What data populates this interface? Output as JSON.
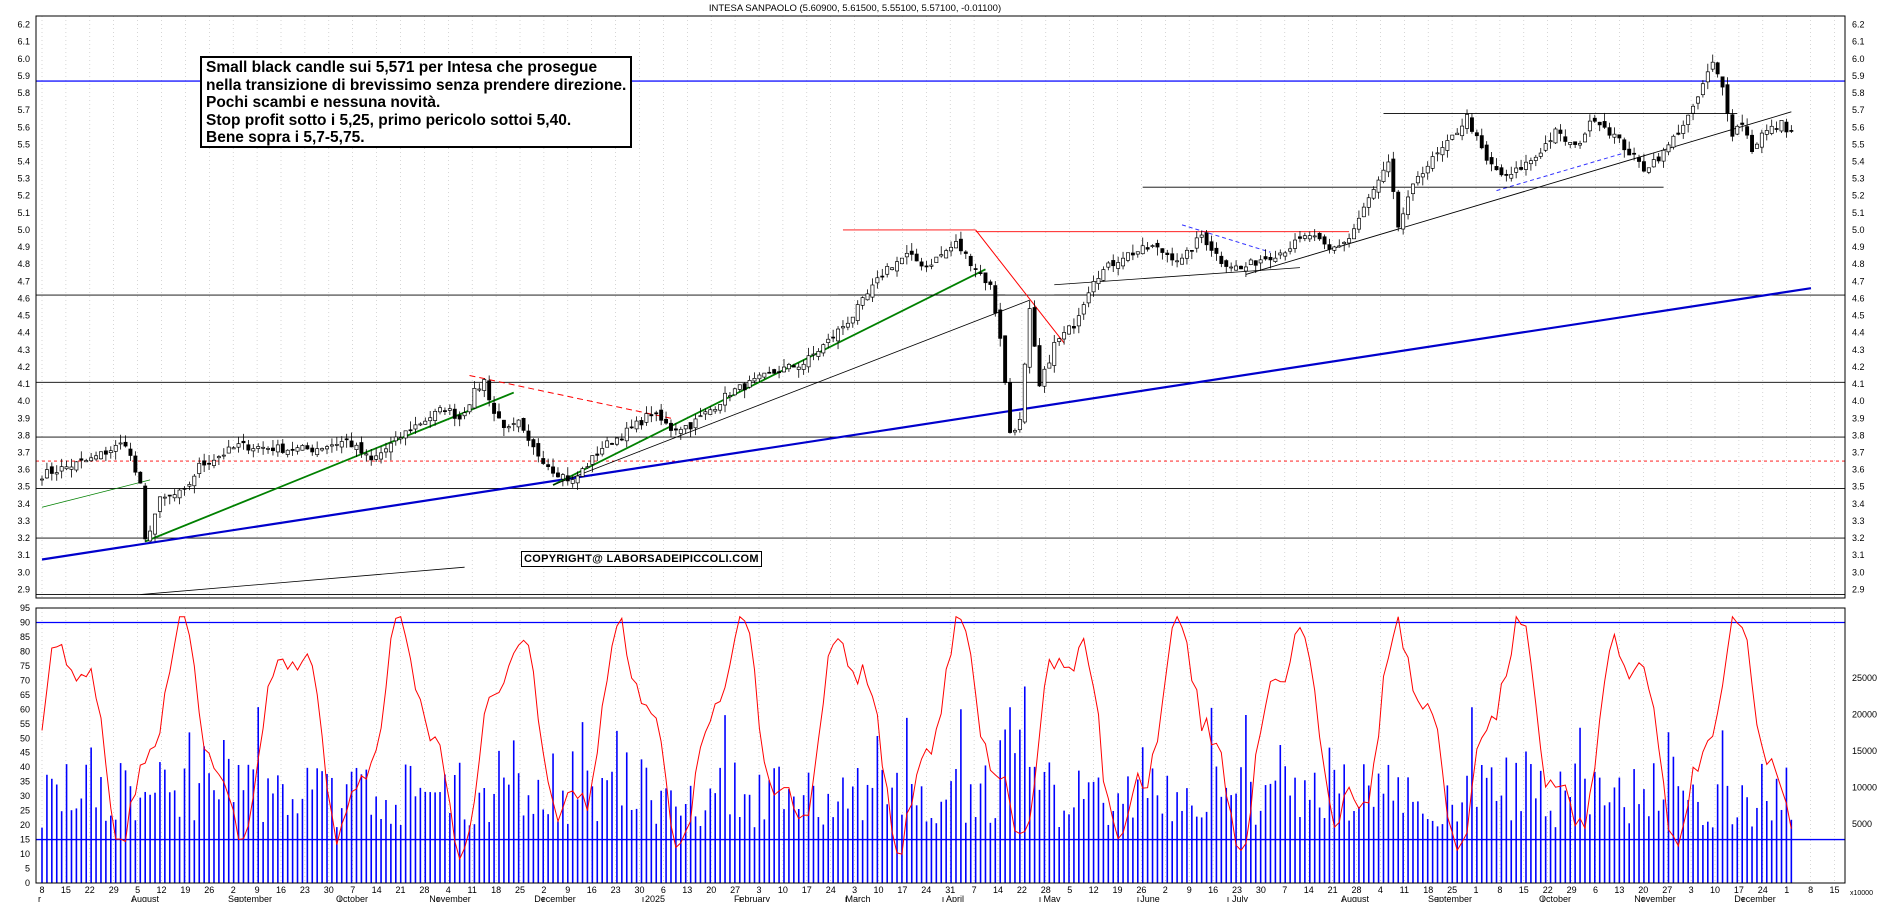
{
  "header": {
    "title": "INTESA SANPAOLO (5.60900, 5.61500, 5.55100, 5.57100, -0.01100)"
  },
  "annotation": {
    "lines": [
      "Small black candle sui 5,571 per Intesa che prosegue",
      "nella transizione di brevissimo senza prendere direzione.",
      "Pochi scambi e nessuna novità.",
      "Stop profit sotto i 5,25, primo pericolo sottoi 5,40.",
      "Bene sopra i 5,7-5,75."
    ]
  },
  "copyright": "COPYRIGHT@ LABORSADEIPICCOLI.COM",
  "chart_data": {
    "type": "candlestick",
    "title": "INTESA SANPAOLO (5.60900, 5.61500, 5.55100, 5.57100, -0.01100)",
    "last_bar": {
      "open": 5.609,
      "high": 5.615,
      "low": 5.551,
      "close": 5.571,
      "change": -0.011
    },
    "price_axis": {
      "ylim": [
        2.85,
        6.25
      ],
      "ticks": [
        "2.9",
        "3.0",
        "3.1",
        "3.2",
        "3.3",
        "3.4",
        "3.5",
        "3.6",
        "3.7",
        "3.8",
        "3.9",
        "4.0",
        "4.1",
        "4.2",
        "4.3",
        "4.4",
        "4.5",
        "4.6",
        "4.7",
        "4.8",
        "4.9",
        "5.0",
        "5.1",
        "5.2",
        "5.3",
        "5.4",
        "5.5",
        "5.6",
        "5.7",
        "5.8",
        "5.9",
        "6.0",
        "6.1",
        "6.2"
      ]
    },
    "oscillator_axis": {
      "ylim": [
        0,
        95
      ],
      "ticks": [
        "0",
        "5",
        "10",
        "15",
        "20",
        "25",
        "30",
        "35",
        "40",
        "45",
        "50",
        "55",
        "60",
        "65",
        "70",
        "75",
        "80",
        "85",
        "90",
        "95"
      ],
      "reference_levels": [
        15,
        90
      ]
    },
    "volume_axis": {
      "ticks": [
        "5000",
        "10000",
        "15000",
        "20000",
        "25000"
      ],
      "unit_label": "x10000"
    },
    "x_axis": {
      "day_labels": [
        "8",
        "15",
        "22",
        "29",
        "5",
        "12",
        "19",
        "26",
        "2",
        "9",
        "16",
        "23",
        "30",
        "7",
        "14",
        "21",
        "28",
        "4",
        "11",
        "18",
        "25",
        "2",
        "9",
        "16",
        "23",
        "30",
        "6",
        "13",
        "20",
        "27",
        "3",
        "10",
        "17",
        "24",
        "3",
        "10",
        "17",
        "24",
        "31",
        "7",
        "14",
        "22",
        "28",
        "5",
        "12",
        "19",
        "26",
        "2",
        "9",
        "16",
        "23",
        "30",
        "7",
        "14",
        "21",
        "28",
        "4",
        "11",
        "18",
        "25",
        "1",
        "8",
        "15",
        "22",
        "29",
        "6",
        "13",
        "20",
        "27",
        "3",
        "10",
        "17",
        "24",
        "1",
        "8",
        "15"
      ],
      "month_labels": [
        "August",
        "September",
        "October",
        "November",
        "December",
        "2025",
        "February",
        "March",
        "April",
        "May",
        "June",
        "July",
        "August",
        "September",
        "October",
        "November",
        "December"
      ],
      "first_label": "r"
    },
    "anchors": [
      {
        "bar": 0,
        "price": 3.57
      },
      {
        "bar": 10,
        "price": 3.66
      },
      {
        "bar": 17,
        "price": 3.76
      },
      {
        "bar": 20,
        "price": 3.5
      },
      {
        "bar": 21,
        "price": 3.18
      },
      {
        "bar": 24,
        "price": 3.42
      },
      {
        "bar": 29,
        "price": 3.47
      },
      {
        "bar": 32,
        "price": 3.62
      },
      {
        "bar": 40,
        "price": 3.74
      },
      {
        "bar": 50,
        "price": 3.72
      },
      {
        "bar": 55,
        "price": 3.72
      },
      {
        "bar": 62,
        "price": 3.77
      },
      {
        "bar": 67,
        "price": 3.65
      },
      {
        "bar": 75,
        "price": 3.84
      },
      {
        "bar": 82,
        "price": 3.96
      },
      {
        "bar": 85,
        "price": 3.9
      },
      {
        "bar": 88,
        "price": 4.05
      },
      {
        "bar": 90,
        "price": 4.12
      },
      {
        "bar": 92,
        "price": 3.93
      },
      {
        "bar": 95,
        "price": 3.83
      },
      {
        "bar": 97,
        "price": 3.87
      },
      {
        "bar": 99,
        "price": 3.75
      },
      {
        "bar": 104,
        "price": 3.6
      },
      {
        "bar": 108,
        "price": 3.53
      },
      {
        "bar": 114,
        "price": 3.73
      },
      {
        "bar": 120,
        "price": 3.84
      },
      {
        "bar": 124,
        "price": 3.93
      },
      {
        "bar": 128,
        "price": 3.84
      },
      {
        "bar": 132,
        "price": 3.86
      },
      {
        "bar": 136,
        "price": 3.95
      },
      {
        "bar": 140,
        "price": 4.05
      },
      {
        "bar": 150,
        "price": 4.18
      },
      {
        "bar": 155,
        "price": 4.22
      },
      {
        "bar": 160,
        "price": 4.35
      },
      {
        "bar": 165,
        "price": 4.5
      },
      {
        "bar": 168,
        "price": 4.62
      },
      {
        "bar": 172,
        "price": 4.78
      },
      {
        "bar": 176,
        "price": 4.85
      },
      {
        "bar": 180,
        "price": 4.79
      },
      {
        "bar": 186,
        "price": 4.92
      },
      {
        "bar": 190,
        "price": 4.78
      },
      {
        "bar": 193,
        "price": 4.67
      },
      {
        "bar": 195,
        "price": 4.38
      },
      {
        "bar": 197,
        "price": 3.82
      },
      {
        "bar": 199,
        "price": 3.88
      },
      {
        "bar": 201,
        "price": 4.52
      },
      {
        "bar": 203,
        "price": 4.08
      },
      {
        "bar": 206,
        "price": 4.33
      },
      {
        "bar": 210,
        "price": 4.45
      },
      {
        "bar": 214,
        "price": 4.72
      },
      {
        "bar": 220,
        "price": 4.85
      },
      {
        "bar": 226,
        "price": 4.9
      },
      {
        "bar": 232,
        "price": 4.82
      },
      {
        "bar": 236,
        "price": 4.97
      },
      {
        "bar": 240,
        "price": 4.82
      },
      {
        "bar": 244,
        "price": 4.77
      },
      {
        "bar": 248,
        "price": 4.83
      },
      {
        "bar": 252,
        "price": 4.87
      },
      {
        "bar": 258,
        "price": 4.97
      },
      {
        "bar": 262,
        "price": 4.88
      },
      {
        "bar": 266,
        "price": 4.95
      },
      {
        "bar": 270,
        "price": 5.18
      },
      {
        "bar": 274,
        "price": 5.38
      },
      {
        "bar": 276,
        "price": 5.02
      },
      {
        "bar": 280,
        "price": 5.32
      },
      {
        "bar": 286,
        "price": 5.5
      },
      {
        "bar": 290,
        "price": 5.66
      },
      {
        "bar": 294,
        "price": 5.4
      },
      {
        "bar": 298,
        "price": 5.3
      },
      {
        "bar": 304,
        "price": 5.43
      },
      {
        "bar": 308,
        "price": 5.57
      },
      {
        "bar": 312,
        "price": 5.48
      },
      {
        "bar": 316,
        "price": 5.66
      },
      {
        "bar": 320,
        "price": 5.55
      },
      {
        "bar": 324,
        "price": 5.42
      },
      {
        "bar": 326,
        "price": 5.36
      },
      {
        "bar": 330,
        "price": 5.45
      },
      {
        "bar": 334,
        "price": 5.62
      },
      {
        "bar": 336,
        "price": 5.7
      },
      {
        "bar": 338,
        "price": 5.85
      },
      {
        "bar": 340,
        "price": 5.97
      },
      {
        "bar": 342,
        "price": 5.83
      },
      {
        "bar": 344,
        "price": 5.57
      },
      {
        "bar": 346,
        "price": 5.63
      },
      {
        "bar": 348,
        "price": 5.47
      },
      {
        "bar": 350,
        "price": 5.56
      },
      {
        "bar": 354,
        "price": 5.62
      },
      {
        "bar": 356,
        "price": 5.57
      }
    ],
    "horizontal_levels": [
      {
        "price": 5.87,
        "color": "#1a1aff"
      },
      {
        "price": 4.62,
        "color": "#000000"
      },
      {
        "price": 4.11,
        "color": "#000000"
      },
      {
        "price": 3.79,
        "color": "#000000"
      },
      {
        "price": 3.49,
        "color": "#000000"
      },
      {
        "price": 3.2,
        "color": "#000000"
      },
      {
        "price": 2.87,
        "color": "#000000"
      },
      {
        "price": 3.65,
        "color": "#ff0000",
        "dashed": true
      }
    ],
    "colors": {
      "support_long": "#0000cc",
      "support_green": "#008000",
      "resistance_red": "#ff0000",
      "oscillator": "#ff0000",
      "volume": "#0000ff",
      "candle": "#000000"
    }
  }
}
